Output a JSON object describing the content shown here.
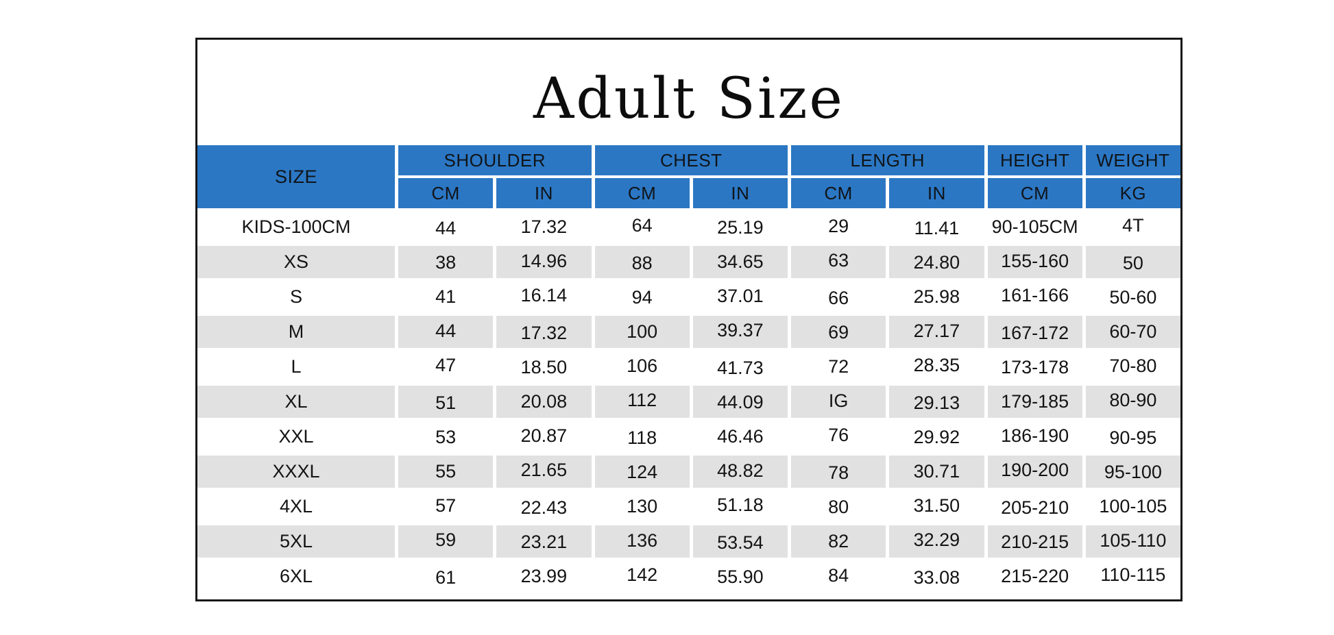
{
  "chart_data": {
    "type": "table",
    "title": "Adult Size",
    "header": {
      "size_label": "SIZE",
      "groups": [
        {
          "label": "SHOULDER",
          "subcolumns": [
            "CM",
            "IN"
          ]
        },
        {
          "label": "CHEST",
          "subcolumns": [
            "CM",
            "IN"
          ]
        },
        {
          "label": "LENGTH",
          "subcolumns": [
            "CM",
            "IN"
          ]
        },
        {
          "label": "HEIGHT",
          "subcolumns": [
            "CM"
          ]
        },
        {
          "label": "WEIGHT",
          "subcolumns": [
            "KG"
          ]
        }
      ]
    },
    "rows": [
      {
        "size": "KIDS-100CM",
        "values": [
          "44",
          "17.32",
          "64",
          "25.19",
          "29",
          "11.41",
          "90-105CM",
          "4T"
        ]
      },
      {
        "size": "XS",
        "values": [
          "38",
          "14.96",
          "88",
          "34.65",
          "63",
          "24.80",
          "155-160",
          "50"
        ]
      },
      {
        "size": "S",
        "values": [
          "41",
          "16.14",
          "94",
          "37.01",
          "66",
          "25.98",
          "161-166",
          "50-60"
        ]
      },
      {
        "size": "M",
        "values": [
          "44",
          "17.32",
          "100",
          "39.37",
          "69",
          "27.17",
          "167-172",
          "60-70"
        ]
      },
      {
        "size": "L",
        "values": [
          "47",
          "18.50",
          "106",
          "41.73",
          "72",
          "28.35",
          "173-178",
          "70-80"
        ]
      },
      {
        "size": "XL",
        "values": [
          "51",
          "20.08",
          "112",
          "44.09",
          "IG",
          "29.13",
          "179-185",
          "80-90"
        ]
      },
      {
        "size": "XXL",
        "values": [
          "53",
          "20.87",
          "118",
          "46.46",
          "76",
          "29.92",
          "186-190",
          "90-95"
        ]
      },
      {
        "size": "XXXL",
        "values": [
          "55",
          "21.65",
          "124",
          "48.82",
          "78",
          "30.71",
          "190-200",
          "95-100"
        ]
      },
      {
        "size": "4XL",
        "values": [
          "57",
          "22.43",
          "130",
          "51.18",
          "80",
          "31.50",
          "205-210",
          "100-105"
        ]
      },
      {
        "size": "5XL",
        "values": [
          "59",
          "23.21",
          "136",
          "53.54",
          "82",
          "32.29",
          "210-215",
          "105-110"
        ]
      },
      {
        "size": "6XL",
        "values": [
          "61",
          "23.99",
          "142",
          "55.90",
          "84",
          "33.08",
          "215-220",
          "110-115"
        ]
      }
    ]
  },
  "colors": {
    "header_blue": "#2b77c4",
    "row_gray": "#e1e1e1",
    "border_black": "#161616",
    "background": "#ffffff"
  }
}
